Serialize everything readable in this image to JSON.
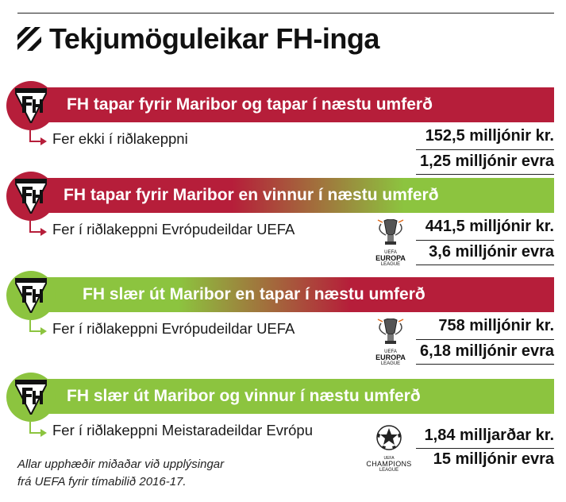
{
  "title": "Tekjumöguleikar FH-inga",
  "colors": {
    "red": "#b61e3a",
    "green": "#8cc43f"
  },
  "scenarios": [
    {
      "headline": "FH tapar fyrir Maribor og tapar í næstu umferð",
      "outcome": "Fer ekki í riðlakeppni",
      "amount_isk": "152,5 milljónir kr.",
      "amount_eur": "1,25 milljónir evra",
      "competition_logo": "none"
    },
    {
      "headline": "FH tapar fyrir Maribor en vinnur í næstu umferð",
      "outcome": "Fer í riðlakeppni Evrópudeildar UEFA",
      "amount_isk": "441,5 milljónir kr.",
      "amount_eur": "3,6 milljónir evra",
      "competition_logo": "europa-league-logo",
      "logo_text_1": "UEFA",
      "logo_text_2": "EUROPA",
      "logo_text_3": "LEAGUE"
    },
    {
      "headline": "FH slær út Maribor en tapar í næstu umferð",
      "outcome": "Fer í riðlakeppni Evrópudeildar UEFA",
      "amount_isk": "758 milljónir kr.",
      "amount_eur": "6,18 milljónir evra",
      "competition_logo": "europa-league-logo",
      "logo_text_1": "UEFA",
      "logo_text_2": "EUROPA",
      "logo_text_3": "LEAGUE"
    },
    {
      "headline": "FH slær út Maribor og vinnur í næstu umferð",
      "outcome": "Fer í riðlakeppni Meistaradeildar Evrópu",
      "amount_isk": "1,84 milljarðar kr.",
      "amount_eur": "15 milljónir evra",
      "competition_logo": "champions-league-logo",
      "logo_text_1": "UEFA",
      "logo_text_2": "CHAMPIONS",
      "logo_text_3": "LEAGUE"
    }
  ],
  "footnote_line1": "Allar upphæðir miðaðar við upplýsingar",
  "footnote_line2": "frá UEFA fyrir tímabilið 2016-17."
}
